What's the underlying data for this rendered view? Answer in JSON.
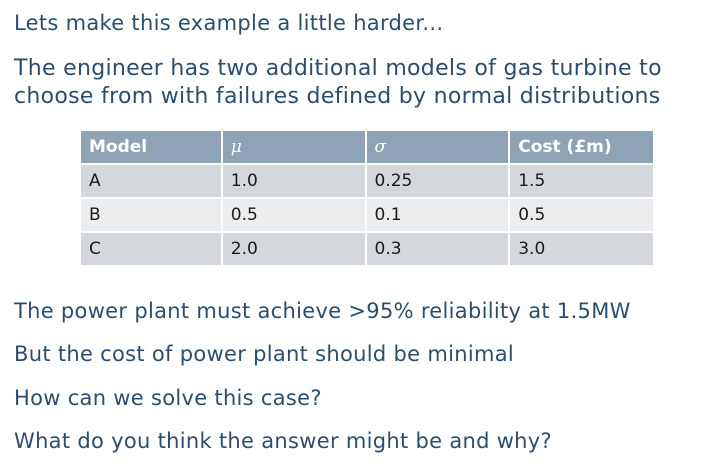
{
  "intro": "Lets make this example a little harder...",
  "heading": {
    "line1": "The engineer has two additional models of gas turbine to",
    "line2": "choose from with failures defined by normal distributions"
  },
  "table": {
    "headers": [
      "Model",
      "μ",
      "σ",
      "Cost (£m)"
    ],
    "rows": [
      {
        "model": "A",
        "mu": "1.0",
        "sigma": "0.25",
        "cost": "1.5"
      },
      {
        "model": "B",
        "mu": "0.5",
        "sigma": "0.1",
        "cost": "0.5"
      },
      {
        "model": "C",
        "mu": "2.0",
        "sigma": "0.3",
        "cost": "3.0"
      }
    ]
  },
  "requirements": [
    "The power plant must achieve >95% reliability at 1.5MW",
    "But the cost of power plant should be minimal"
  ],
  "questions": [
    "How can we solve this case?",
    "What do you think the answer might be and why?"
  ],
  "colors": {
    "text": "#2b4e6e",
    "header_bg": "#8ea3b6",
    "row_dark": "#d4d8dc",
    "row_light": "#ebedee"
  }
}
